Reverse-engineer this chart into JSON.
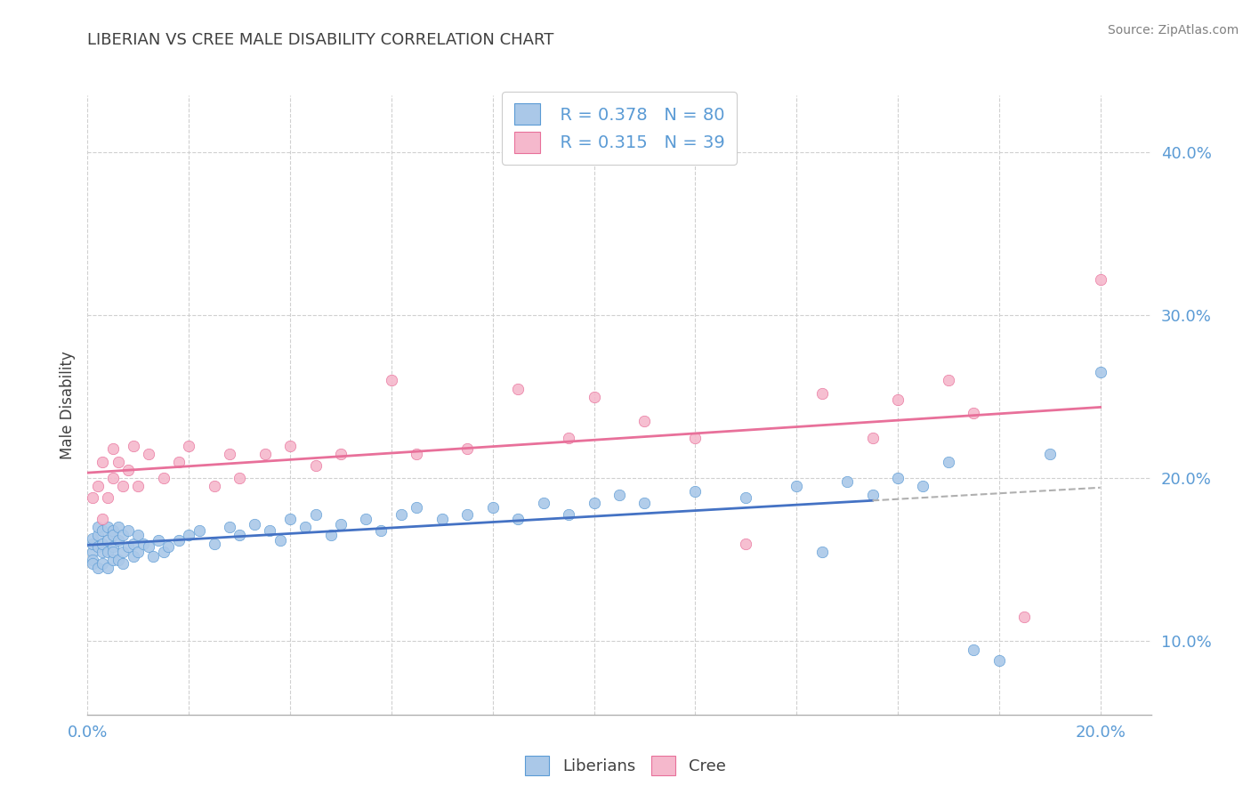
{
  "title": "LIBERIAN VS CREE MALE DISABILITY CORRELATION CHART",
  "source": "Source: ZipAtlas.com",
  "ylabel": "Male Disability",
  "xlim": [
    0.0,
    0.21
  ],
  "ylim": [
    0.055,
    0.435
  ],
  "yticks": [
    0.1,
    0.2,
    0.3,
    0.4
  ],
  "ytick_labels": [
    "10.0%",
    "20.0%",
    "30.0%",
    "40.0%"
  ],
  "xtick_left": "0.0%",
  "xtick_right": "20.0%",
  "liberian_color": "#aac8e8",
  "cree_color": "#f5b8cc",
  "liberian_edge_color": "#5b9bd5",
  "cree_edge_color": "#e8709a",
  "liberian_line_color": "#4472c4",
  "cree_line_color": "#e8709a",
  "dash_line_color": "#b0b0b0",
  "background_color": "#ffffff",
  "grid_color": "#d0d0d0",
  "title_color": "#404040",
  "source_color": "#808080",
  "axis_tick_color": "#5b9bd5",
  "legend_R_liberian": "R = 0.378",
  "legend_N_liberian": "N = 80",
  "legend_R_cree": "R = 0.315",
  "legend_N_cree": "N = 39",
  "lib_x": [
    0.001,
    0.001,
    0.001,
    0.001,
    0.001,
    0.002,
    0.002,
    0.002,
    0.002,
    0.003,
    0.003,
    0.003,
    0.003,
    0.004,
    0.004,
    0.004,
    0.004,
    0.005,
    0.005,
    0.005,
    0.005,
    0.005,
    0.006,
    0.006,
    0.006,
    0.007,
    0.007,
    0.007,
    0.008,
    0.008,
    0.009,
    0.009,
    0.01,
    0.01,
    0.011,
    0.012,
    0.013,
    0.014,
    0.015,
    0.016,
    0.018,
    0.02,
    0.022,
    0.025,
    0.028,
    0.03,
    0.033,
    0.036,
    0.038,
    0.04,
    0.043,
    0.045,
    0.048,
    0.05,
    0.055,
    0.058,
    0.062,
    0.065,
    0.07,
    0.075,
    0.08,
    0.085,
    0.09,
    0.095,
    0.1,
    0.105,
    0.11,
    0.12,
    0.13,
    0.14,
    0.145,
    0.15,
    0.155,
    0.16,
    0.165,
    0.17,
    0.175,
    0.18,
    0.19,
    0.2
  ],
  "lib_y": [
    0.155,
    0.15,
    0.16,
    0.148,
    0.163,
    0.158,
    0.165,
    0.145,
    0.17,
    0.155,
    0.16,
    0.168,
    0.148,
    0.162,
    0.155,
    0.17,
    0.145,
    0.158,
    0.168,
    0.15,
    0.165,
    0.155,
    0.162,
    0.15,
    0.17,
    0.155,
    0.148,
    0.165,
    0.158,
    0.168,
    0.152,
    0.16,
    0.155,
    0.165,
    0.16,
    0.158,
    0.152,
    0.162,
    0.155,
    0.158,
    0.162,
    0.165,
    0.168,
    0.16,
    0.17,
    0.165,
    0.172,
    0.168,
    0.162,
    0.175,
    0.17,
    0.178,
    0.165,
    0.172,
    0.175,
    0.168,
    0.178,
    0.182,
    0.175,
    0.178,
    0.182,
    0.175,
    0.185,
    0.178,
    0.185,
    0.19,
    0.185,
    0.192,
    0.188,
    0.195,
    0.155,
    0.198,
    0.19,
    0.2,
    0.195,
    0.21,
    0.095,
    0.088,
    0.215,
    0.265
  ],
  "cree_x": [
    0.001,
    0.002,
    0.003,
    0.003,
    0.004,
    0.005,
    0.005,
    0.006,
    0.007,
    0.008,
    0.009,
    0.01,
    0.012,
    0.015,
    0.018,
    0.02,
    0.025,
    0.028,
    0.03,
    0.035,
    0.04,
    0.045,
    0.05,
    0.06,
    0.065,
    0.075,
    0.085,
    0.095,
    0.1,
    0.11,
    0.12,
    0.13,
    0.145,
    0.155,
    0.16,
    0.17,
    0.175,
    0.185,
    0.2
  ],
  "cree_y": [
    0.188,
    0.195,
    0.175,
    0.21,
    0.188,
    0.2,
    0.218,
    0.21,
    0.195,
    0.205,
    0.22,
    0.195,
    0.215,
    0.2,
    0.21,
    0.22,
    0.195,
    0.215,
    0.2,
    0.215,
    0.22,
    0.208,
    0.215,
    0.26,
    0.215,
    0.218,
    0.255,
    0.225,
    0.25,
    0.235,
    0.225,
    0.16,
    0.252,
    0.225,
    0.248,
    0.26,
    0.24,
    0.115,
    0.322
  ]
}
